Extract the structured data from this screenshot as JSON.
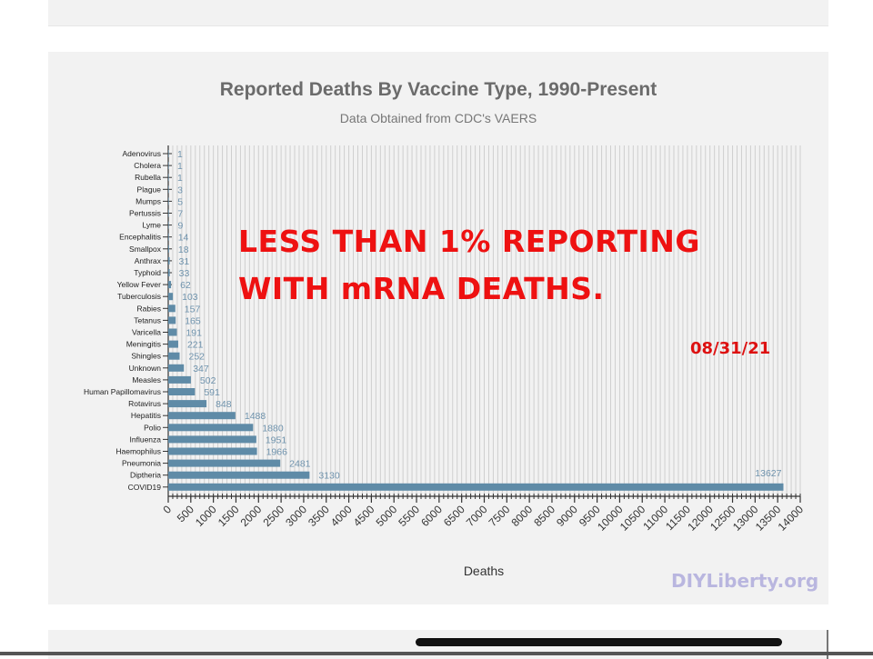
{
  "watermark": "DIYLiberty.org",
  "overlay": {
    "line1": "LESS THAN 1% REPORTING",
    "line2": "WITH mRNA DEATHS.",
    "date": "08/31/21"
  },
  "colors": {
    "bar": "#5f8ba7",
    "overlay_text": "#ee1111",
    "title": "#6b6b6b"
  },
  "chart_data": {
    "type": "bar",
    "orientation": "horizontal",
    "title": "Reported Deaths By Vaccine Type, 1990-Present",
    "subtitle": "Data Obtained from CDC's VAERS",
    "xlabel": "Deaths",
    "ylabel": "",
    "xlim": [
      0,
      14000
    ],
    "grid": true,
    "categories": [
      "Adenovirus",
      "Cholera",
      "Rubella",
      "Plague",
      "Mumps",
      "Pertussis",
      "Lyme",
      "Encephalitis",
      "Smallpox",
      "Anthrax",
      "Typhoid",
      "Yellow Fever",
      "Tuberculosis",
      "Rabies",
      "Tetanus",
      "Varicella",
      "Meningitis",
      "Shingles",
      "Unknown",
      "Measles",
      "Human Papillomavirus",
      "Rotavirus",
      "Hepatitis",
      "Polio",
      "Influenza",
      "Haemophilus",
      "Pneumonia",
      "Diptheria",
      "COVID19"
    ],
    "values": [
      1,
      1,
      1,
      3,
      5,
      7,
      9,
      14,
      18,
      31,
      33,
      62,
      103,
      157,
      165,
      191,
      221,
      252,
      347,
      502,
      591,
      848,
      1488,
      1880,
      1951,
      1966,
      2481,
      3130,
      13627
    ],
    "x_ticks": [
      "0",
      "500",
      "1000",
      "1500",
      "2000",
      "2500",
      "3000",
      "3500",
      "4000",
      "4500",
      "5000",
      "5500",
      "6000",
      "6500",
      "7000",
      "7500",
      "8000",
      "8500",
      "9000",
      "9500",
      "10000",
      "10500",
      "11000",
      "11500",
      "12000",
      "12500",
      "13000",
      "13500",
      "14000"
    ]
  }
}
